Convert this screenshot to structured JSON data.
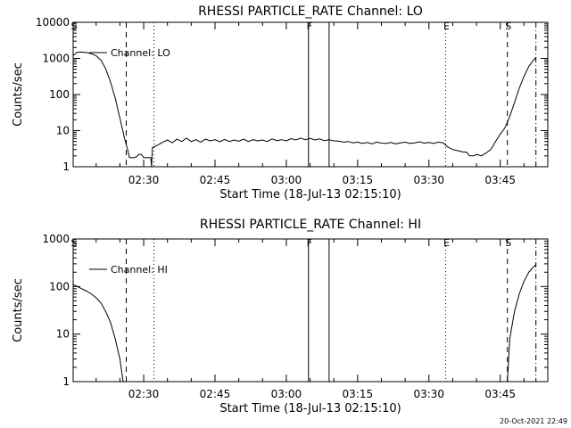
{
  "background": "#ffffff",
  "foreground": "#000000",
  "timestamp": "20-Oct-2021 22:49",
  "chart_data": [
    {
      "type": "line",
      "title": "RHESSI PARTICLE_RATE Channel: LO",
      "xlabel": "Start Time (18-Jul-13 02:15:10)",
      "ylabel": "Counts/sec",
      "yscale": "log",
      "xlim": [
        "02:15:10",
        "03:55:00"
      ],
      "ylim": [
        1,
        10000
      ],
      "xticks": [
        "02:30",
        "02:45",
        "03:00",
        "03:15",
        "03:30",
        "03:45"
      ],
      "yticks": [
        "1",
        "10",
        "100",
        "1000",
        "10000"
      ],
      "legend": {
        "label": "Channel: LO",
        "position": "top-left"
      },
      "markers": [
        {
          "label": "S",
          "time": "02:15:10",
          "style": "none"
        },
        {
          "label": "",
          "time": "02:26:20",
          "style": "dashed"
        },
        {
          "label": "",
          "time": "02:32:10",
          "style": "dotted"
        },
        {
          "label": "F",
          "time": "03:04:40",
          "style": "solid"
        },
        {
          "label": "",
          "time": "03:09:00",
          "style": "solid"
        },
        {
          "label": "E",
          "time": "03:33:30",
          "style": "dotted"
        },
        {
          "label": "S",
          "time": "03:46:30",
          "style": "dashed"
        },
        {
          "label": "",
          "time": "03:52:30",
          "style": "dashdot"
        }
      ],
      "series": [
        {
          "name": "Channel: LO",
          "points": [
            [
              "02:15:10",
              1200
            ],
            [
              "02:16:00",
              1480
            ],
            [
              "02:17:00",
              1500
            ],
            [
              "02:18:00",
              1450
            ],
            [
              "02:19:00",
              1350
            ],
            [
              "02:20:00",
              1180
            ],
            [
              "02:21:00",
              900
            ],
            [
              "02:22:00",
              520
            ],
            [
              "02:23:00",
              230
            ],
            [
              "02:24:00",
              80
            ],
            [
              "02:25:00",
              22
            ],
            [
              "02:26:00",
              6
            ],
            [
              "02:26:40",
              2.8
            ],
            [
              "02:27:00",
              1.8
            ],
            [
              "02:28:00",
              1.8
            ],
            [
              "02:28:30",
              1.9
            ],
            [
              "02:29:00",
              2.2
            ],
            [
              "02:29:30",
              2.2
            ],
            [
              "02:30:00",
              1.8
            ],
            [
              "02:31:30",
              1.8
            ],
            [
              "02:31:40",
              1.0
            ],
            [
              "02:31:50",
              3.4
            ],
            [
              "02:33:00",
              4.0
            ],
            [
              "02:34:00",
              4.8
            ],
            [
              "02:35:00",
              5.5
            ],
            [
              "02:36:00",
              4.6
            ],
            [
              "02:37:00",
              5.8
            ],
            [
              "02:38:00",
              5.0
            ],
            [
              "02:39:00",
              6.2
            ],
            [
              "02:40:00",
              5.0
            ],
            [
              "02:41:00",
              5.6
            ],
            [
              "02:42:00",
              4.8
            ],
            [
              "02:43:00",
              5.8
            ],
            [
              "02:44:00",
              5.2
            ],
            [
              "02:45:00",
              5.6
            ],
            [
              "02:46:00",
              4.9
            ],
            [
              "02:47:00",
              5.7
            ],
            [
              "02:48:00",
              5.0
            ],
            [
              "02:49:00",
              5.5
            ],
            [
              "02:50:00",
              5.1
            ],
            [
              "02:51:00",
              5.8
            ],
            [
              "02:52:00",
              5.0
            ],
            [
              "02:53:00",
              5.6
            ],
            [
              "02:54:00",
              5.2
            ],
            [
              "02:55:00",
              5.5
            ],
            [
              "02:56:00",
              5.0
            ],
            [
              "02:57:00",
              5.9
            ],
            [
              "02:58:00",
              5.3
            ],
            [
              "02:59:00",
              5.6
            ],
            [
              "03:00:00",
              5.2
            ],
            [
              "03:01:00",
              6.0
            ],
            [
              "03:02:00",
              5.5
            ],
            [
              "03:03:00",
              6.2
            ],
            [
              "03:04:00",
              5.6
            ],
            [
              "03:05:00",
              6.1
            ],
            [
              "03:06:00",
              5.5
            ],
            [
              "03:07:00",
              5.9
            ],
            [
              "03:08:00",
              5.3
            ],
            [
              "03:09:00",
              5.6
            ],
            [
              "03:10:00",
              5.2
            ],
            [
              "03:11:00",
              5.1
            ],
            [
              "03:12:00",
              4.8
            ],
            [
              "03:13:00",
              5.0
            ],
            [
              "03:14:00",
              4.6
            ],
            [
              "03:15:00",
              4.8
            ],
            [
              "03:16:00",
              4.4
            ],
            [
              "03:17:00",
              4.7
            ],
            [
              "03:18:00",
              4.3
            ],
            [
              "03:19:00",
              4.8
            ],
            [
              "03:20:00",
              4.5
            ],
            [
              "03:21:00",
              4.4
            ],
            [
              "03:22:00",
              4.7
            ],
            [
              "03:23:00",
              4.3
            ],
            [
              "03:24:00",
              4.6
            ],
            [
              "03:25:00",
              4.8
            ],
            [
              "03:26:00",
              4.4
            ],
            [
              "03:27:00",
              4.6
            ],
            [
              "03:28:00",
              4.9
            ],
            [
              "03:29:00",
              4.5
            ],
            [
              "03:30:00",
              4.7
            ],
            [
              "03:31:00",
              4.4
            ],
            [
              "03:32:00",
              4.8
            ],
            [
              "03:33:00",
              4.6
            ],
            [
              "03:34:00",
              3.5
            ],
            [
              "03:35:00",
              3.0
            ],
            [
              "03:36:00",
              2.8
            ],
            [
              "03:37:00",
              2.6
            ],
            [
              "03:38:00",
              2.5
            ],
            [
              "03:38:30",
              2.0
            ],
            [
              "03:39:30",
              2.0
            ],
            [
              "03:40:00",
              2.2
            ],
            [
              "03:41:00",
              2.0
            ],
            [
              "03:42:00",
              2.4
            ],
            [
              "03:43:00",
              3.0
            ],
            [
              "03:44:00",
              5.0
            ],
            [
              "03:45:00",
              8.0
            ],
            [
              "03:46:00",
              12
            ],
            [
              "03:47:00",
              25
            ],
            [
              "03:48:00",
              60
            ],
            [
              "03:49:00",
              150
            ],
            [
              "03:50:00",
              320
            ],
            [
              "03:51:00",
              600
            ],
            [
              "03:52:00",
              900
            ],
            [
              "03:52:30",
              1050
            ]
          ]
        }
      ]
    },
    {
      "type": "line",
      "title": "RHESSI PARTICLE_RATE Channel: HI",
      "xlabel": "Start Time (18-Jul-13 02:15:10)",
      "ylabel": "Counts/sec",
      "yscale": "log",
      "xlim": [
        "02:15:10",
        "03:55:00"
      ],
      "ylim": [
        1,
        1000
      ],
      "xticks": [
        "02:30",
        "02:45",
        "03:00",
        "03:15",
        "03:30",
        "03:45"
      ],
      "yticks": [
        "1",
        "10",
        "100",
        "1000"
      ],
      "legend": {
        "label": "Channel: HI",
        "position": "top-left"
      },
      "markers": [
        {
          "label": "S",
          "time": "02:15:10",
          "style": "none"
        },
        {
          "label": "",
          "time": "02:26:20",
          "style": "dashed"
        },
        {
          "label": "",
          "time": "02:32:10",
          "style": "dotted"
        },
        {
          "label": "F",
          "time": "03:04:40",
          "style": "solid"
        },
        {
          "label": "",
          "time": "03:09:00",
          "style": "solid"
        },
        {
          "label": "E",
          "time": "03:33:30",
          "style": "dotted"
        },
        {
          "label": "S",
          "time": "03:46:30",
          "style": "dashed"
        },
        {
          "label": "",
          "time": "03:52:30",
          "style": "dashdot"
        }
      ],
      "series": [
        {
          "name": "Channel: HI",
          "points": [
            [
              "02:15:10",
              110
            ],
            [
              "02:16:00",
              100
            ],
            [
              "02:17:00",
              90
            ],
            [
              "02:18:00",
              80
            ],
            [
              "02:19:00",
              70
            ],
            [
              "02:20:00",
              58
            ],
            [
              "02:21:00",
              45
            ],
            [
              "02:22:00",
              30
            ],
            [
              "02:23:00",
              18
            ],
            [
              "02:24:00",
              8
            ],
            [
              "02:25:00",
              3
            ],
            [
              "02:25:40",
              1
            ]
          ]
        },
        {
          "name": "Channel: HI",
          "points": [
            [
              "03:46:30",
              1
            ],
            [
              "03:47:00",
              8
            ],
            [
              "03:48:00",
              30
            ],
            [
              "03:49:00",
              70
            ],
            [
              "03:50:00",
              130
            ],
            [
              "03:51:00",
              200
            ],
            [
              "03:52:00",
              260
            ],
            [
              "03:52:30",
              290
            ]
          ]
        }
      ]
    }
  ]
}
